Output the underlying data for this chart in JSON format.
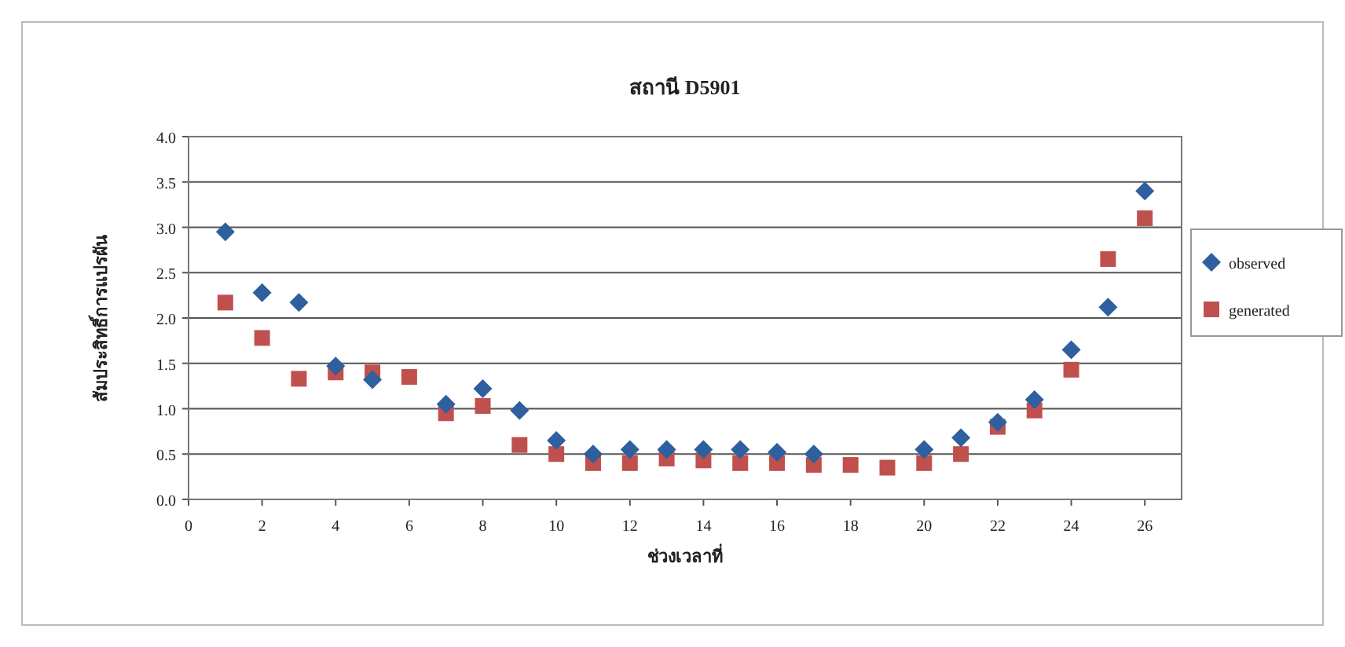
{
  "chart_data": {
    "type": "scatter",
    "title": "สถานี D5901",
    "xlabel": "ช่วงเวลาที่",
    "ylabel": "สัมประสิทธิ์การแปรผัน",
    "x": [
      1,
      2,
      3,
      4,
      5,
      6,
      7,
      8,
      9,
      10,
      11,
      12,
      13,
      14,
      15,
      16,
      17,
      18,
      19,
      20,
      21,
      22,
      23,
      24,
      25,
      26
    ],
    "series": [
      {
        "name": "observed",
        "color": "#2e5f9e",
        "marker": "diamond",
        "values": [
          2.95,
          2.28,
          2.17,
          1.47,
          1.32,
          null,
          1.05,
          1.22,
          0.98,
          0.65,
          0.5,
          0.55,
          0.55,
          0.55,
          0.55,
          0.52,
          0.5,
          null,
          null,
          0.55,
          0.68,
          0.85,
          1.1,
          1.65,
          2.12,
          3.4
        ]
      },
      {
        "name": "generated",
        "color": "#c0504d",
        "marker": "square",
        "values": [
          2.17,
          1.78,
          1.33,
          1.4,
          1.4,
          1.35,
          0.95,
          1.03,
          0.6,
          0.5,
          0.4,
          0.4,
          0.45,
          0.43,
          0.4,
          0.4,
          0.38,
          0.38,
          0.35,
          0.4,
          0.5,
          0.8,
          0.98,
          1.43,
          2.65,
          3.1
        ]
      }
    ],
    "xlim": [
      0,
      27
    ],
    "xticks": [
      0,
      2,
      4,
      6,
      8,
      10,
      12,
      14,
      16,
      18,
      20,
      22,
      24,
      26
    ],
    "ylim": [
      0,
      4
    ],
    "yticks": [
      {
        "value": 0,
        "label": "0.0"
      },
      {
        "value": 0.5,
        "label": "0.5"
      },
      {
        "value": 1,
        "label": "1.0"
      },
      {
        "value": 1.5,
        "label": "1.5"
      },
      {
        "value": 2,
        "label": "2.0"
      },
      {
        "value": 2.5,
        "label": "2.5"
      },
      {
        "value": 3,
        "label": "3.0"
      },
      {
        "value": 3.5,
        "label": "3.5"
      },
      {
        "value": 4,
        "label": "4.0"
      }
    ],
    "grid": "y",
    "legend": "right"
  }
}
